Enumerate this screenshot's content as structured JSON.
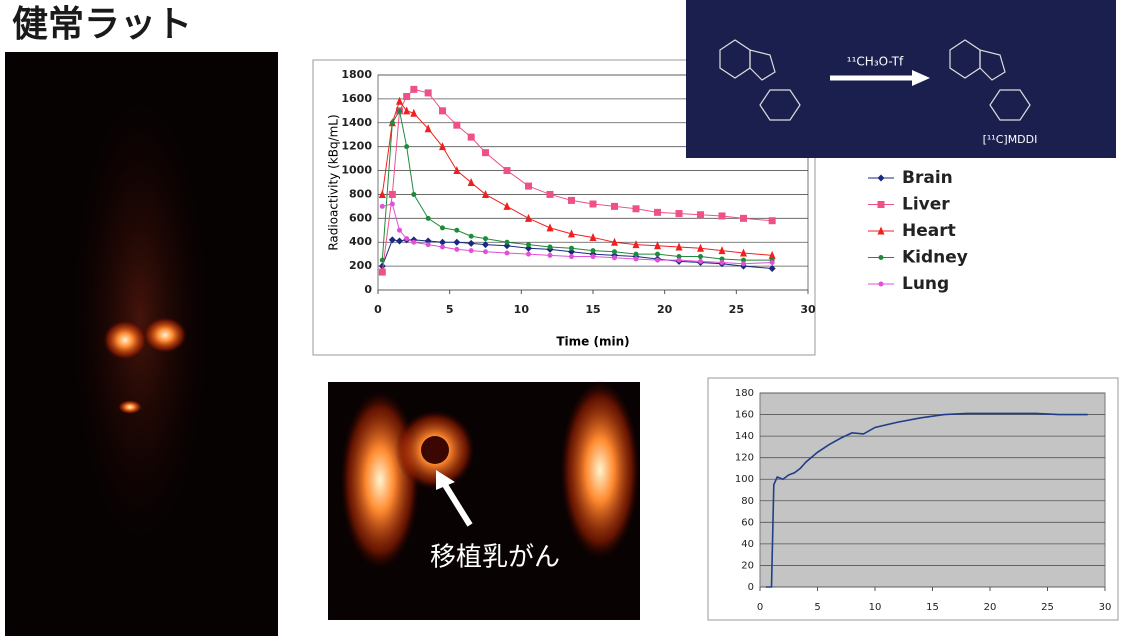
{
  "title": "健常ラット",
  "image_label": "移植乳がん",
  "reaction": {
    "reagent": "¹¹CH₃O-Tf",
    "product": "[¹¹C]MDDI"
  },
  "chart_data": [
    {
      "type": "line",
      "x_label": "Time (min)",
      "y_label": "Radioactivity (kBq/mL)",
      "x": [
        0.3,
        1,
        1.5,
        2,
        2.5,
        3.5,
        4.5,
        5.5,
        6.5,
        7.5,
        9,
        10.5,
        12,
        13.5,
        15,
        16.5,
        18,
        19.5,
        21,
        22.5,
        24,
        25.5,
        27.5
      ],
      "series": [
        {
          "name": "Brain",
          "color": "#1a2a80",
          "marker": "diamond",
          "values": [
            200,
            420,
            410,
            420,
            420,
            410,
            400,
            400,
            390,
            380,
            370,
            350,
            340,
            320,
            300,
            290,
            280,
            260,
            240,
            230,
            220,
            200,
            180
          ]
        },
        {
          "name": "Liver",
          "color": "#f0508a",
          "marker": "square",
          "values": [
            150,
            800,
            1500,
            1620,
            1680,
            1650,
            1500,
            1380,
            1280,
            1150,
            1000,
            870,
            800,
            750,
            720,
            700,
            680,
            650,
            640,
            630,
            620,
            600,
            580
          ]
        },
        {
          "name": "Heart",
          "color": "#f02020",
          "marker": "triangle",
          "values": [
            800,
            1400,
            1580,
            1500,
            1480,
            1350,
            1200,
            1000,
            900,
            800,
            700,
            600,
            520,
            470,
            440,
            400,
            380,
            370,
            360,
            350,
            330,
            310,
            290
          ]
        },
        {
          "name": "Kidney",
          "color": "#1f8a3a",
          "marker": "circle",
          "values": [
            250,
            1400,
            1500,
            1200,
            800,
            600,
            520,
            500,
            450,
            430,
            400,
            380,
            360,
            350,
            330,
            320,
            300,
            300,
            280,
            280,
            260,
            250,
            250
          ]
        },
        {
          "name": "Lung",
          "color": "#e050d8",
          "marker": "circle",
          "values": [
            700,
            720,
            500,
            430,
            400,
            380,
            360,
            340,
            330,
            320,
            310,
            300,
            290,
            280,
            280,
            270,
            260,
            250,
            250,
            240,
            230,
            220,
            230
          ]
        }
      ],
      "xlim": [
        0,
        30
      ],
      "xticks": [
        0,
        5,
        10,
        15,
        20,
        25,
        30
      ],
      "ylim": [
        0,
        1800
      ],
      "yticks": [
        0,
        200,
        400,
        600,
        800,
        1000,
        1200,
        1400,
        1600,
        1800
      ],
      "grid": true,
      "legend": "right"
    },
    {
      "type": "line",
      "x": [
        0.5,
        1,
        1.2,
        1.5,
        2,
        2.5,
        3,
        3.5,
        4,
        5,
        6,
        7,
        8,
        9,
        10,
        12,
        14,
        16,
        18,
        20,
        22,
        24,
        26,
        28.5
      ],
      "values": [
        0,
        0,
        95,
        102,
        100,
        104,
        106,
        110,
        116,
        125,
        132,
        138,
        143,
        142,
        148,
        153,
        157,
        160,
        161,
        161,
        161,
        161,
        160,
        160
      ],
      "color": "#1f3f8a",
      "xlim": [
        0,
        30
      ],
      "xticks": [
        0,
        5,
        10,
        15,
        20,
        25,
        30
      ],
      "ylim": [
        0,
        180
      ],
      "yticks": [
        0,
        20,
        40,
        60,
        80,
        100,
        120,
        140,
        160,
        180
      ],
      "grid": true,
      "plot_background": "#c4c4c4"
    }
  ]
}
